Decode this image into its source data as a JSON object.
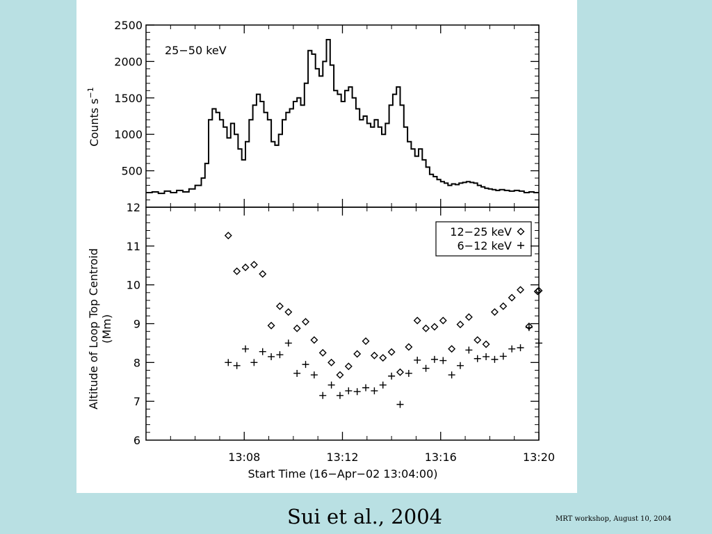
{
  "slide": {
    "background": "#b9e0e3",
    "caption": "Sui et al., 2004",
    "footer": "MRT workshop,  August 10,  2004"
  },
  "chart_data": [
    {
      "type": "line",
      "title": "25−50 keV",
      "ylabel": "Counts s",
      "ylabel_exponent": "−1",
      "xlim": [
        0,
        16
      ],
      "ylim": [
        0,
        2500
      ],
      "yticks": [
        "500",
        "1000",
        "1500",
        "2000",
        "2500"
      ],
      "x": [
        0,
        0.25,
        0.5,
        0.75,
        1.0,
        1.25,
        1.5,
        1.75,
        2.0,
        2.25,
        2.4,
        2.55,
        2.7,
        2.85,
        3.0,
        3.15,
        3.3,
        3.45,
        3.6,
        3.75,
        3.9,
        4.05,
        4.2,
        4.35,
        4.5,
        4.65,
        4.8,
        4.95,
        5.1,
        5.25,
        5.4,
        5.55,
        5.7,
        5.85,
        6.0,
        6.15,
        6.3,
        6.45,
        6.6,
        6.75,
        6.9,
        7.05,
        7.2,
        7.35,
        7.5,
        7.65,
        7.8,
        7.95,
        8.1,
        8.25,
        8.4,
        8.55,
        8.7,
        8.85,
        9.0,
        9.15,
        9.3,
        9.45,
        9.6,
        9.75,
        9.9,
        10.05,
        10.2,
        10.35,
        10.5,
        10.65,
        10.8,
        10.95,
        11.1,
        11.25,
        11.4,
        11.55,
        11.7,
        11.85,
        12.0,
        12.15,
        12.3,
        12.45,
        12.6,
        12.75,
        12.9,
        13.05,
        13.2,
        13.35,
        13.5,
        13.65,
        13.8,
        13.95,
        14.1,
        14.25,
        14.4,
        14.6,
        14.8,
        15.0,
        15.2,
        15.4,
        15.6,
        15.8,
        16.0
      ],
      "y": [
        200,
        210,
        190,
        220,
        200,
        230,
        210,
        250,
        300,
        400,
        600,
        1200,
        1350,
        1300,
        1200,
        1100,
        950,
        1150,
        1000,
        800,
        650,
        900,
        1200,
        1400,
        1550,
        1450,
        1300,
        1200,
        900,
        850,
        1000,
        1200,
        1300,
        1350,
        1450,
        1500,
        1400,
        1700,
        2150,
        2100,
        1900,
        1800,
        2000,
        2300,
        1950,
        1600,
        1550,
        1450,
        1600,
        1650,
        1500,
        1350,
        1200,
        1250,
        1150,
        1100,
        1200,
        1100,
        1000,
        1150,
        1400,
        1550,
        1650,
        1400,
        1100,
        900,
        800,
        700,
        800,
        650,
        550,
        450,
        420,
        380,
        350,
        330,
        300,
        320,
        310,
        330,
        340,
        350,
        340,
        330,
        300,
        280,
        260,
        250,
        240,
        230,
        240,
        230,
        220,
        230,
        220,
        200,
        210,
        200,
        200
      ]
    },
    {
      "type": "scatter",
      "xlabel": "Start Time (16−Apr−02 13:04:00)",
      "ylabel": "Altitude of Loop Top Centroid",
      "ylabel2": "(Mm)",
      "xlim": [
        0,
        16
      ],
      "ylim": [
        6,
        12
      ],
      "xticks": [
        "13:08",
        "13:12",
        "13:16",
        "13:20"
      ],
      "yticks": [
        "6",
        "7",
        "8",
        "9",
        "10",
        "11",
        "12"
      ],
      "legend_position": "top-right",
      "series": [
        {
          "name": "12−25 keV",
          "marker": "diamond",
          "x": [
            3.35,
            3.7,
            4.05,
            4.4,
            4.75,
            5.1,
            5.45,
            5.8,
            6.15,
            6.5,
            6.85,
            7.2,
            7.55,
            7.9,
            8.25,
            8.6,
            8.95,
            9.3,
            9.65,
            10.0,
            10.35,
            10.7,
            11.05,
            11.4,
            11.75,
            12.1,
            12.45,
            12.8,
            13.15,
            13.5,
            13.85,
            14.2,
            14.55,
            14.9,
            15.25,
            15.6
          ],
          "y": [
            11.27,
            10.35,
            10.45,
            10.52,
            10.28,
            8.95,
            9.45,
            9.3,
            8.88,
            9.05,
            8.58,
            8.25,
            8.0,
            7.68,
            7.9,
            8.22,
            8.55,
            8.18,
            8.12,
            8.27,
            7.75,
            8.4,
            9.08,
            8.88,
            8.92,
            9.08,
            8.35,
            8.98,
            9.17,
            8.58,
            8.47,
            9.3,
            9.45,
            9.67,
            9.87,
            8.93
          ]
        },
        {
          "name": "6−12 keV",
          "marker": "plus",
          "x": [
            3.35,
            3.7,
            4.05,
            4.4,
            4.75,
            5.1,
            5.45,
            5.8,
            6.15,
            6.5,
            6.85,
            7.2,
            7.55,
            7.9,
            8.25,
            8.6,
            8.95,
            9.3,
            9.65,
            10.0,
            10.35,
            10.7,
            11.05,
            11.4,
            11.75,
            12.1,
            12.45,
            12.8,
            13.15,
            13.5,
            13.85,
            14.2,
            14.55,
            14.9,
            15.25,
            15.6
          ],
          "y": [
            8.0,
            7.92,
            8.35,
            8.0,
            8.28,
            8.15,
            8.2,
            8.5,
            7.72,
            7.95,
            7.68,
            7.15,
            7.42,
            7.15,
            7.27,
            7.25,
            7.35,
            7.27,
            7.42,
            7.65,
            6.92,
            7.72,
            8.06,
            7.85,
            8.08,
            8.05,
            7.68,
            7.92,
            8.32,
            8.1,
            8.15,
            8.08,
            8.16,
            8.35,
            8.38,
            8.9
          ]
        }
      ],
      "extra_points": [
        {
          "series": "12−25 keV",
          "x": 15.95,
          "y": 9.83
        },
        {
          "series": "12−25 keV",
          "x": 16.0,
          "y": 9.85
        },
        {
          "series": "6−12 keV",
          "x": 16.0,
          "y": 8.5
        }
      ]
    }
  ]
}
